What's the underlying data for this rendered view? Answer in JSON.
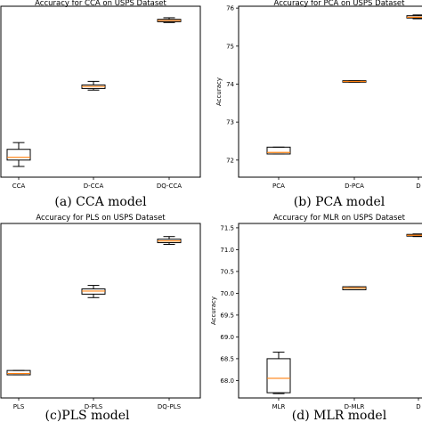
{
  "chart_data": [
    {
      "type": "box",
      "title": "Accuracy for CCA on USPS Dataset",
      "caption": "(a) CCA model",
      "ylabel": "",
      "ylim": [
        71.85,
        76.15
      ],
      "yticks": [],
      "categories": [
        "CCA",
        "D-CCA",
        "DQ-CCA"
      ],
      "boxes": [
        {
          "whislo": 72.12,
          "q1": 72.28,
          "med": 72.35,
          "q3": 72.55,
          "whishi": 72.72
        },
        {
          "whislo": 74.04,
          "q1": 74.08,
          "med": 74.13,
          "q3": 74.17,
          "whishi": 74.26
        },
        {
          "whislo": 75.74,
          "q1": 75.76,
          "med": 75.79,
          "q3": 75.82,
          "whishi": 75.86
        }
      ]
    },
    {
      "type": "box",
      "title": "Accuracy for PCA on USPS Dataset",
      "caption": "(b) PCA model",
      "ylabel": "Accuracy",
      "ylim": [
        71.55,
        76.05
      ],
      "yticks": [
        72,
        73,
        74,
        75,
        76
      ],
      "categories": [
        "PCA",
        "D-PCA",
        "D"
      ],
      "boxes": [
        {
          "whislo": 72.16,
          "q1": 72.16,
          "med": 72.2,
          "q3": 72.34,
          "whishi": 72.34
        },
        {
          "whislo": 74.05,
          "q1": 74.05,
          "med": 74.07,
          "q3": 74.09,
          "whishi": 74.09
        },
        {
          "whislo": 75.72,
          "q1": 75.74,
          "med": 75.76,
          "q3": 75.8,
          "whishi": 75.82
        }
      ]
    },
    {
      "type": "box",
      "title": "Accuracy for PLS on USPS Dataset",
      "caption": "(c)PLS model",
      "ylabel": "",
      "ylim": [
        72.0,
        76.0
      ],
      "yticks": [],
      "categories": [
        "PLS",
        "D-PLS",
        "DQ-PLS"
      ],
      "boxes": [
        {
          "whislo": 72.53,
          "q1": 72.53,
          "med": 72.56,
          "q3": 72.63,
          "whishi": 72.63
        },
        {
          "whislo": 74.3,
          "q1": 74.38,
          "med": 74.45,
          "q3": 74.5,
          "whishi": 74.58
        },
        {
          "whislo": 75.52,
          "q1": 75.56,
          "med": 75.6,
          "q3": 75.64,
          "whishi": 75.7
        }
      ]
    },
    {
      "type": "box",
      "title": "Accuracy for MLR on USPS Dataset",
      "caption": "(d) MLR model",
      "ylabel": "Accuracy",
      "ylim": [
        67.6,
        71.6
      ],
      "yticks": [
        68.0,
        68.5,
        69.0,
        69.5,
        70.0,
        70.5,
        71.0,
        71.5
      ],
      "categories": [
        "MLR",
        "D-MLR",
        "D"
      ],
      "boxes": [
        {
          "whislo": 67.7,
          "q1": 67.72,
          "med": 68.05,
          "q3": 68.5,
          "whishi": 68.65
        },
        {
          "whislo": 70.08,
          "q1": 70.08,
          "med": 70.12,
          "q3": 70.15,
          "whishi": 70.15
        },
        {
          "whislo": 71.3,
          "q1": 71.31,
          "med": 71.33,
          "q3": 71.35,
          "whishi": 71.36
        }
      ]
    }
  ],
  "colors": {
    "median": "#ff7f0e",
    "box": "#000000",
    "axes": "#000000"
  }
}
